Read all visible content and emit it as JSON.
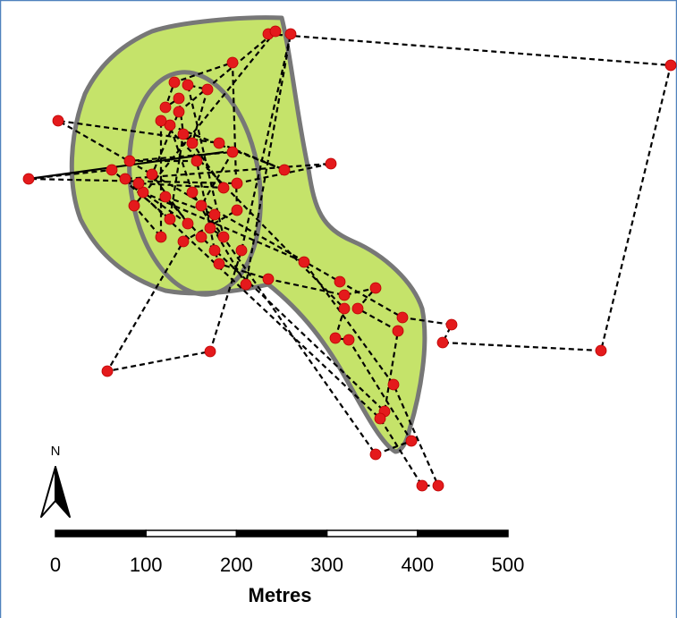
{
  "north_arrow": {
    "label": "N"
  },
  "scale_bar": {
    "labels": [
      "0",
      "100",
      "200",
      "300",
      "400",
      "500"
    ],
    "unit": "Metres"
  }
}
